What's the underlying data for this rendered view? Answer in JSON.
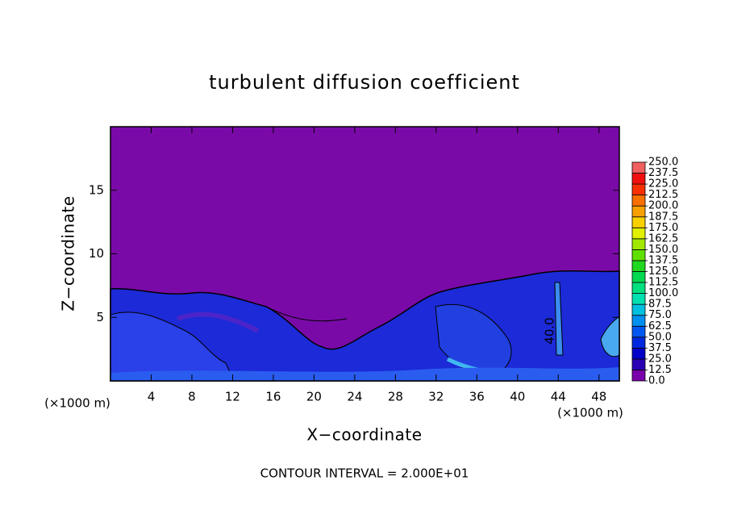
{
  "chart_data": {
    "type": "contour",
    "title": "turbulent diffusion coefficient",
    "x_label": "X−coordinate",
    "y_label": "Z−coordinate",
    "x_unit_label": "(×1000 m)",
    "z_unit_label": "(×1000 m)",
    "footer": "CONTOUR INTERVAL = 2.000E+01",
    "annotations": [
      "40.0"
    ],
    "xlim": [
      0,
      50
    ],
    "xticks": [
      4,
      8,
      12,
      16,
      20,
      24,
      28,
      32,
      36,
      40,
      44,
      48
    ],
    "ylim": [
      0,
      20
    ],
    "yticks": [
      5,
      10,
      15
    ],
    "colorbar": {
      "lim": [
        0,
        250
      ],
      "ticks": [
        {
          "value": 0,
          "label": "0.0"
        },
        {
          "value": 12.5,
          "label": "12.5"
        },
        {
          "value": 25,
          "label": "25.0"
        },
        {
          "value": 37.5,
          "label": "37.5"
        },
        {
          "value": 50,
          "label": "50.0"
        },
        {
          "value": 62.5,
          "label": "62.5"
        },
        {
          "value": 75,
          "label": "75.0"
        },
        {
          "value": 87.5,
          "label": "87.5"
        },
        {
          "value": 100,
          "label": "100.0"
        },
        {
          "value": 112.5,
          "label": "112.5"
        },
        {
          "value": 125,
          "label": "125.0"
        },
        {
          "value": 137.5,
          "label": "137.5"
        },
        {
          "value": 150,
          "label": "150.0"
        },
        {
          "value": 162.5,
          "label": "162.5"
        },
        {
          "value": 175,
          "label": "175.0"
        },
        {
          "value": 187.5,
          "label": "187.5"
        },
        {
          "value": 200,
          "label": "200.0"
        },
        {
          "value": 212.5,
          "label": "212.5"
        },
        {
          "value": 225,
          "label": "225.0"
        },
        {
          "value": 237.5,
          "label": "237.5"
        },
        {
          "value": 250,
          "label": "250.0"
        }
      ],
      "colors": [
        "#7a00aa",
        "#2a00b4",
        "#0000c8",
        "#0028e0",
        "#0058f0",
        "#0090f0",
        "#00c0e0",
        "#00e0b0",
        "#00e080",
        "#00d850",
        "#20d820",
        "#60e000",
        "#a0e800",
        "#e0f000",
        "#f8d000",
        "#f8a000",
        "#f87000",
        "#f83000",
        "#f01010",
        "#f06060"
      ]
    }
  }
}
